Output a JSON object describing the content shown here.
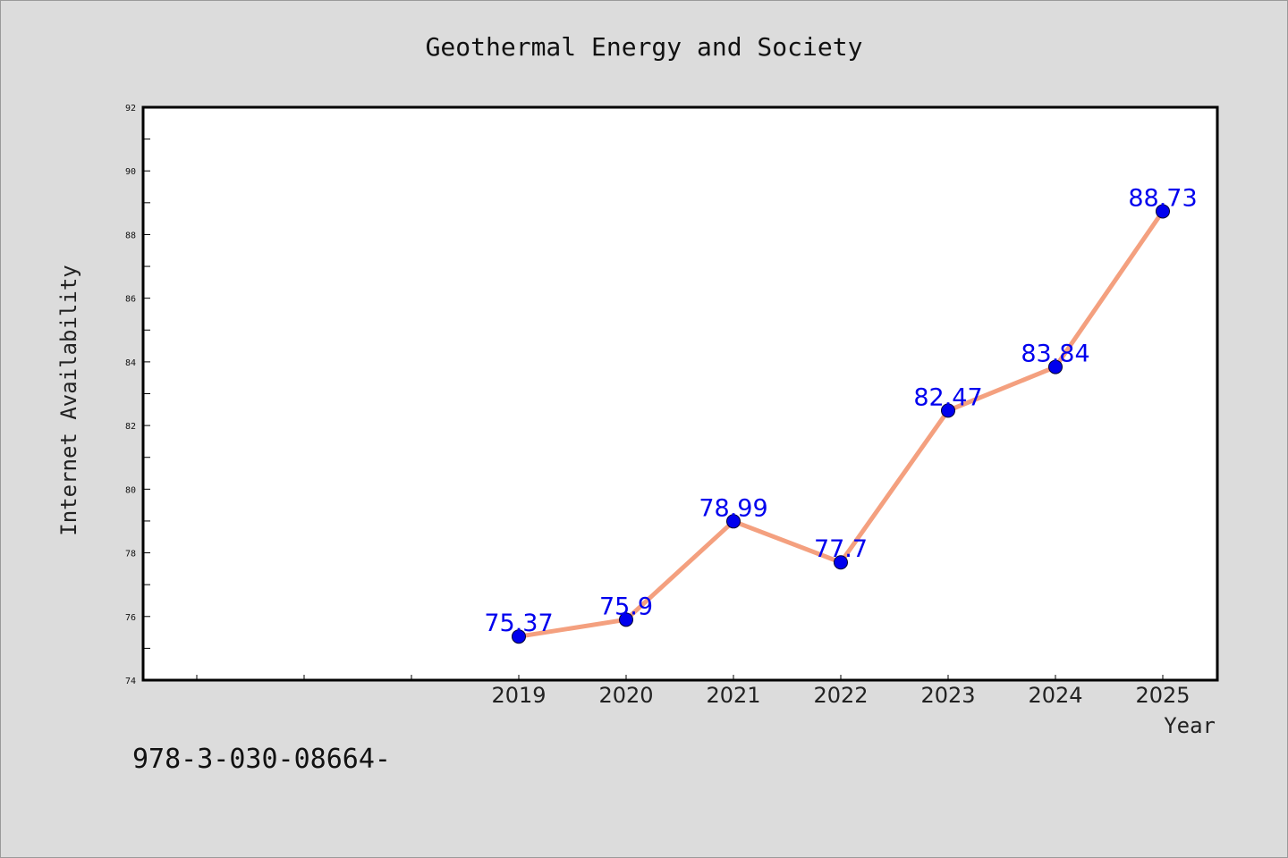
{
  "chart_data": {
    "type": "line",
    "title": "Geothermal Energy and Society",
    "xlabel": "Year",
    "ylabel": "Internet Availability",
    "x": [
      "2019",
      "2020",
      "2021",
      "2022",
      "2023",
      "2024",
      "2025"
    ],
    "series": [
      {
        "values": [
          75.37,
          75.9,
          78.99,
          77.7,
          82.47,
          83.84,
          88.73
        ],
        "labels": [
          "75.37",
          "75.9",
          "78.99",
          "77.7",
          "82.47",
          "83.84",
          "88.73"
        ],
        "line_color": "#f4a07f",
        "marker_color": "#0000ee"
      }
    ],
    "ylim": [
      74,
      92
    ],
    "yticks": [
      "74",
      "76",
      "78",
      "80",
      "82",
      "84",
      "86",
      "88",
      "90",
      "92"
    ],
    "grid": false,
    "legend": "none"
  },
  "footer": {
    "text": "978-3-030-08664-"
  },
  "colors": {
    "background": "#dcdcdc",
    "plot_background": "#ffffff",
    "line": "#f4a07f",
    "marker": "#0000ee",
    "point_label": "#0000ee"
  }
}
